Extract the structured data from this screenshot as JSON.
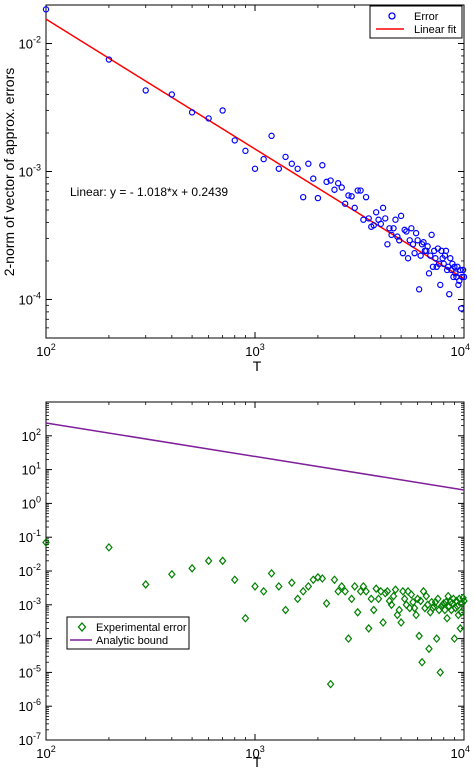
{
  "chart_data": [
    {
      "type": "scatter",
      "title": "",
      "xlabel": "T",
      "ylabel": "2-norm of vector of approx. errors",
      "xscale": "log",
      "yscale": "log",
      "xlim": [
        100,
        10000
      ],
      "ylim": [
        5e-05,
        0.02
      ],
      "x_ticks": [
        {
          "value": 100,
          "base": "10",
          "exp": "2"
        },
        {
          "value": 1000,
          "base": "10",
          "exp": "3"
        },
        {
          "value": 10000,
          "base": "10",
          "exp": "4"
        }
      ],
      "y_ticks": [
        {
          "value": 0.0001,
          "base": "10",
          "exp": "-4"
        },
        {
          "value": 0.001,
          "base": "10",
          "exp": "-3"
        },
        {
          "value": 0.01,
          "base": "10",
          "exp": "-2"
        }
      ],
      "annotation": "Linear:  y = - 1.018*x + 0.2439",
      "legend": {
        "placement": "top-right",
        "entries": [
          "Error",
          "Linear fit"
        ]
      },
      "series": [
        {
          "name": "Error",
          "kind": "markers",
          "marker": "circle",
          "color": "#0000ff",
          "x": [
            100,
            200,
            300,
            400,
            500,
            600,
            700,
            800,
            900,
            1000,
            1100,
            1200,
            1300,
            1400,
            1500,
            1600,
            1700,
            1800,
            1900,
            2000,
            2100,
            2200,
            2300,
            2400,
            2500,
            2600,
            2700,
            2800,
            2900,
            3000,
            3100,
            3200,
            3300,
            3400,
            3500,
            3600,
            3700,
            3800,
            3900,
            4000,
            4100,
            4200,
            4300,
            4400,
            4500,
            4600,
            4700,
            4800,
            4900,
            5000,
            5100,
            5200,
            5300,
            5400,
            5500,
            5600,
            5700,
            5800,
            5900,
            6000,
            6100,
            6200,
            6300,
            6400,
            6500,
            6600,
            6700,
            6800,
            6900,
            7000,
            7100,
            7200,
            7300,
            7400,
            7500,
            7600,
            7700,
            7800,
            7900,
            8000,
            8100,
            8200,
            8300,
            8400,
            8500,
            8600,
            8700,
            8800,
            8900,
            9000,
            9100,
            9200,
            9300,
            9400,
            9500,
            9600,
            9700,
            9800,
            9900,
            10000
          ],
          "y": [
            0.0185,
            0.0075,
            0.0043,
            0.004,
            0.0029,
            0.0026,
            0.003,
            0.00175,
            0.00145,
            0.00105,
            0.00125,
            0.0019,
            0.00105,
            0.0013,
            0.00115,
            0.00105,
            0.00063,
            0.00115,
            0.00088,
            0.00062,
            0.00112,
            0.00083,
            0.00085,
            0.00072,
            0.00081,
            0.00075,
            0.00056,
            0.00065,
            0.00064,
            0.00052,
            0.00071,
            0.00071,
            0.00042,
            0.00063,
            0.00043,
            0.00037,
            0.00038,
            0.00048,
            0.00042,
            0.00039,
            0.00052,
            0.00043,
            0.00027,
            0.00036,
            0.00032,
            0.00036,
            0.00042,
            0.00031,
            0.00029,
            0.00045,
            0.00023,
            0.00035,
            0.00034,
            0.00021,
            0.00029,
            0.00036,
            0.00027,
            0.00023,
            0.00033,
            0.00029,
            0.00012,
            0.00022,
            0.00027,
            0.00028,
            0.00024,
            0.00024,
            0.00026,
            0.00016,
            0.00022,
            0.00032,
            0.00018,
            0.00024,
            0.00021,
            0.00018,
            0.00025,
            0.00019,
            0.00013,
            0.00024,
            0.00021,
            0.00019,
            0.00022,
            0.00024,
            0.00017,
            0.00018,
            0.00011,
            0.00021,
            0.00017,
            0.00019,
            0.00015,
            0.00018,
            0.00016,
            0.00015,
            0.00018,
            0.00013,
            0.00014,
            0.00017,
            8.5e-05,
            0.00015,
            0.00017,
            0.00015
          ]
        },
        {
          "name": "Linear fit",
          "kind": "line",
          "color": "#ff0000",
          "x": [
            100,
            10000
          ],
          "y": [
            0.0155,
            0.000145
          ]
        }
      ]
    },
    {
      "type": "scatter",
      "title": "",
      "xlabel": "T",
      "ylabel": "",
      "xscale": "log",
      "yscale": "log",
      "xlim": [
        100,
        10000
      ],
      "ylim": [
        1e-07,
        1000
      ],
      "x_ticks": [
        {
          "value": 100,
          "base": "10",
          "exp": "2"
        },
        {
          "value": 1000,
          "base": "10",
          "exp": "3"
        },
        {
          "value": 10000,
          "base": "10",
          "exp": "4"
        }
      ],
      "y_ticks": [
        {
          "value": 1e-07,
          "base": "10",
          "exp": "-7"
        },
        {
          "value": 1e-06,
          "base": "10",
          "exp": "-6"
        },
        {
          "value": 1e-05,
          "base": "10",
          "exp": "-5"
        },
        {
          "value": 0.0001,
          "base": "10",
          "exp": "-4"
        },
        {
          "value": 0.001,
          "base": "10",
          "exp": "-3"
        },
        {
          "value": 0.01,
          "base": "10",
          "exp": "-2"
        },
        {
          "value": 0.1,
          "base": "10",
          "exp": "-1"
        },
        {
          "value": 1,
          "base": "10",
          "exp": "0"
        },
        {
          "value": 10,
          "base": "10",
          "exp": "1"
        },
        {
          "value": 100,
          "base": "10",
          "exp": "2"
        }
      ],
      "legend": {
        "placement": "bottom-left",
        "entries": [
          "Experimental error",
          "Analytic bound"
        ]
      },
      "series": [
        {
          "name": "Experimental error",
          "kind": "markers",
          "marker": "diamond",
          "color": "#008000",
          "x": [
            100,
            200,
            300,
            400,
            500,
            600,
            700,
            800,
            900,
            1000,
            1100,
            1200,
            1300,
            1400,
            1500,
            1600,
            1700,
            1800,
            1900,
            2000,
            2100,
            2200,
            2300,
            2400,
            2500,
            2600,
            2700,
            2800,
            2900,
            3000,
            3100,
            3200,
            3300,
            3400,
            3500,
            3600,
            3700,
            3800,
            3900,
            4000,
            4100,
            4200,
            4300,
            4400,
            4500,
            4600,
            4700,
            4800,
            4900,
            5000,
            5100,
            5200,
            5300,
            5400,
            5500,
            5600,
            5700,
            5800,
            5900,
            6000,
            6100,
            6200,
            6300,
            6400,
            6500,
            6600,
            6700,
            6800,
            6900,
            7000,
            7100,
            7200,
            7300,
            7400,
            7500,
            7600,
            7700,
            7800,
            7900,
            8000,
            8100,
            8200,
            8300,
            8400,
            8500,
            8600,
            8700,
            8800,
            8900,
            9000,
            9100,
            9200,
            9300,
            9400,
            9500,
            9600,
            9700,
            9800,
            9900,
            10000
          ],
          "y": [
            0.07,
            0.05,
            0.004,
            0.008,
            0.012,
            0.02,
            0.02,
            0.0055,
            0.0004,
            0.0035,
            0.0025,
            0.0085,
            0.0035,
            0.0007,
            0.0045,
            0.0015,
            0.0025,
            0.0035,
            0.0055,
            0.0065,
            0.006,
            0.0011,
            4.5e-06,
            0.0055,
            0.0025,
            0.0035,
            0.0025,
            0.0001,
            0.0015,
            0.0035,
            0.0006,
            0.0025,
            0.0035,
            0.0025,
            0.0002,
            0.0015,
            0.0007,
            0.003,
            0.0015,
            0.0025,
            0.0003,
            0.0022,
            0.0025,
            0.0013,
            0.001,
            0.0018,
            0.0028,
            0.0005,
            0.0007,
            0.0003,
            0.0025,
            0.0015,
            0.001,
            0.0025,
            0.0008,
            0.002,
            0.0012,
            0.0008,
            0.0005,
            0.0015,
            0.00012,
            0.0013,
            2e-05,
            0.0025,
            0.0008,
            0.0018,
            0.001,
            5e-05,
            0.0006,
            0.0012,
            0.0008,
            0.0009,
            0.0012,
            0.0001,
            0.0015,
            0.0007,
            1e-05,
            0.0009,
            0.001,
            0.0011,
            0.0007,
            0.0012,
            0.0004,
            0.0018,
            0.0009,
            0.0012,
            0.0007,
            0.0011,
            0.0015,
            0.0001,
            0.0008,
            0.0013,
            0.0009,
            0.0005,
            0.0015,
            0.0002,
            0.0006,
            0.0011,
            0.0016,
            0.0013
          ]
        },
        {
          "name": "Analytic bound",
          "kind": "line",
          "color": "#7f1f9a",
          "x": [
            100,
            10000
          ],
          "y": [
            240,
            2.5
          ]
        }
      ]
    }
  ]
}
